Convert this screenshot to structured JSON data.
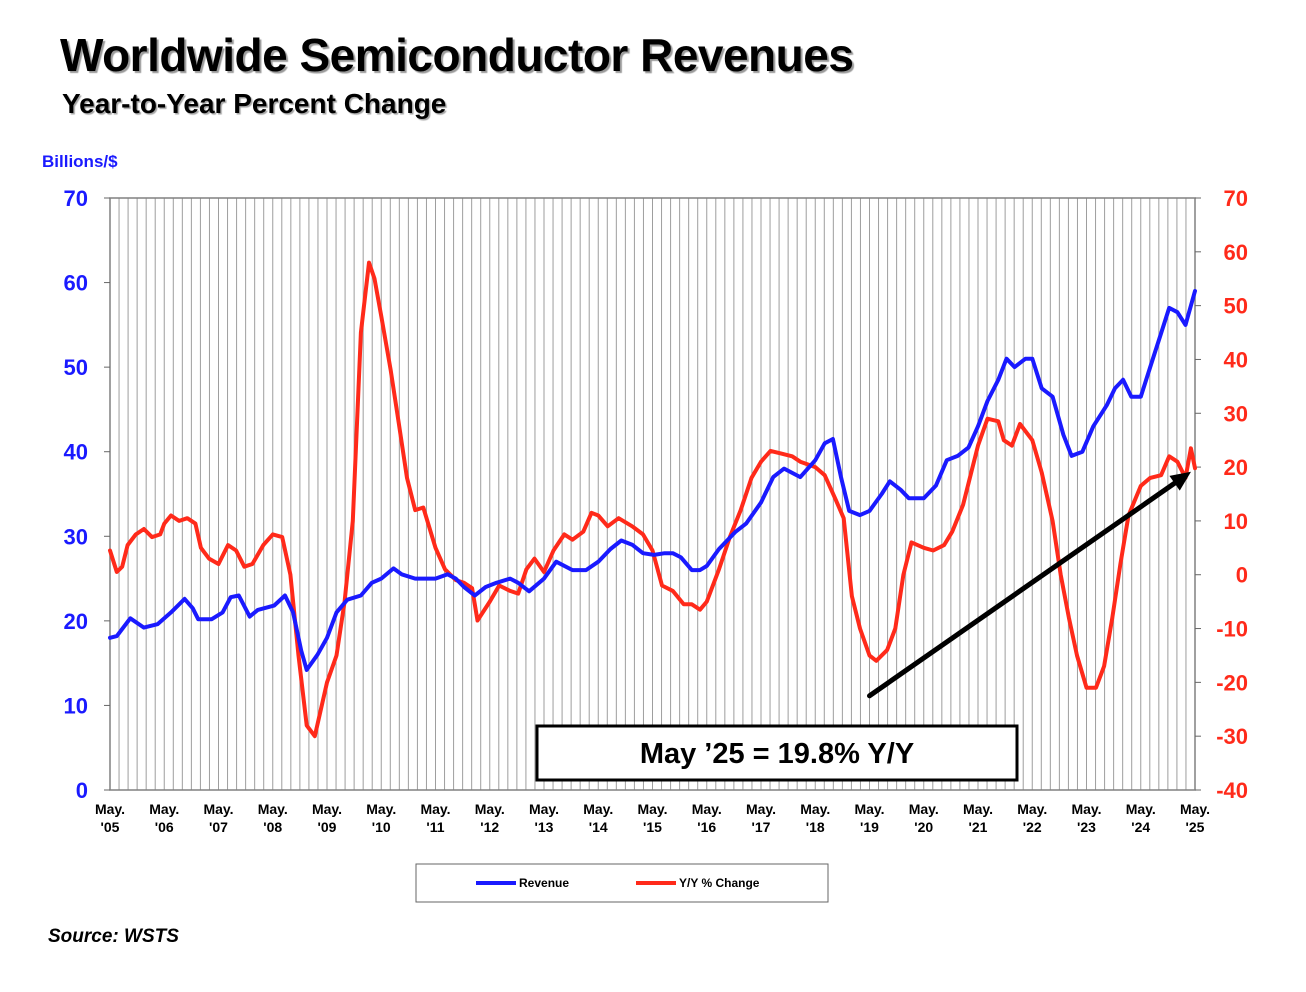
{
  "title": "Worldwide Semiconductor Revenues",
  "subtitle": "Year-to-Year Percent Change",
  "left_axis_unit": "Billions/$",
  "source": "Source: WSTS",
  "annotation": "May ’25 = 19.8% Y/Y",
  "colors": {
    "revenue": "#1a1aff",
    "yoy": "#ff2a1a",
    "grid": "#9e9e9e",
    "arrow": "#000000"
  },
  "chart_data": {
    "type": "line",
    "x_ticks": [
      [
        "May.",
        "'05"
      ],
      [
        "May.",
        "'06"
      ],
      [
        "May.",
        "'07"
      ],
      [
        "May.",
        "'08"
      ],
      [
        "May.",
        "'09"
      ],
      [
        "May.",
        "'10"
      ],
      [
        "May.",
        "'11"
      ],
      [
        "May.",
        "'12"
      ],
      [
        "May.",
        "'13"
      ],
      [
        "May.",
        "'14"
      ],
      [
        "May.",
        "'15"
      ],
      [
        "May.",
        "'16"
      ],
      [
        "May.",
        "'17"
      ],
      [
        "May.",
        "'18"
      ],
      [
        "May.",
        "'19"
      ],
      [
        "May.",
        "'20"
      ],
      [
        "May.",
        "'21"
      ],
      [
        "May.",
        "'22"
      ],
      [
        "May.",
        "'23"
      ],
      [
        "May.",
        "'24"
      ],
      [
        "May.",
        "'25"
      ]
    ],
    "x_range": [
      2005.375,
      2025.375
    ],
    "y_left": {
      "label": "Billions/$",
      "min": 0,
      "max": 70,
      "step": 10,
      "ticks": [
        "0",
        "10",
        "20",
        "30",
        "40",
        "50",
        "60",
        "70"
      ]
    },
    "y_right": {
      "min": -40,
      "max": 70,
      "step": 10,
      "ticks": [
        "-40",
        "-30",
        "-20",
        "-10",
        "0",
        "10",
        "20",
        "30",
        "40",
        "50",
        "60",
        "70"
      ]
    },
    "grid": "vertical-monthly",
    "legend_position": "bottom-center",
    "series": [
      {
        "name": "Revenue",
        "axis": "left",
        "points": [
          [
            2005.375,
            18.0
          ],
          [
            2005.5,
            18.2
          ],
          [
            2005.75,
            20.3
          ],
          [
            2006.0,
            19.2
          ],
          [
            2006.25,
            19.6
          ],
          [
            2006.5,
            21.0
          ],
          [
            2006.75,
            22.6
          ],
          [
            2006.9,
            21.5
          ],
          [
            2007.0,
            20.2
          ],
          [
            2007.25,
            20.2
          ],
          [
            2007.45,
            21.0
          ],
          [
            2007.6,
            22.8
          ],
          [
            2007.75,
            23.0
          ],
          [
            2007.95,
            20.5
          ],
          [
            2008.1,
            21.3
          ],
          [
            2008.4,
            21.8
          ],
          [
            2008.6,
            23.0
          ],
          [
            2008.75,
            21.0
          ],
          [
            2008.9,
            16.5
          ],
          [
            2009.0,
            14.2
          ],
          [
            2009.2,
            16.0
          ],
          [
            2009.375,
            18.0
          ],
          [
            2009.55,
            21.0
          ],
          [
            2009.75,
            22.5
          ],
          [
            2010.0,
            23.0
          ],
          [
            2010.2,
            24.5
          ],
          [
            2010.375,
            25.0
          ],
          [
            2010.6,
            26.2
          ],
          [
            2010.75,
            25.5
          ],
          [
            2011.0,
            25.0
          ],
          [
            2011.2,
            25.0
          ],
          [
            2011.375,
            25.0
          ],
          [
            2011.6,
            25.5
          ],
          [
            2011.75,
            25.0
          ],
          [
            2011.9,
            24.0
          ],
          [
            2012.1,
            23.0
          ],
          [
            2012.3,
            24.0
          ],
          [
            2012.5,
            24.5
          ],
          [
            2012.75,
            25.0
          ],
          [
            2012.9,
            24.5
          ],
          [
            2013.1,
            23.5
          ],
          [
            2013.375,
            25.0
          ],
          [
            2013.6,
            27.0
          ],
          [
            2013.9,
            26.0
          ],
          [
            2014.15,
            26.0
          ],
          [
            2014.375,
            27.0
          ],
          [
            2014.6,
            28.5
          ],
          [
            2014.8,
            29.5
          ],
          [
            2015.0,
            29.0
          ],
          [
            2015.2,
            28.0
          ],
          [
            2015.4,
            27.8
          ],
          [
            2015.6,
            28.0
          ],
          [
            2015.75,
            28.0
          ],
          [
            2015.9,
            27.5
          ],
          [
            2016.1,
            26.0
          ],
          [
            2016.25,
            26.0
          ],
          [
            2016.375,
            26.5
          ],
          [
            2016.6,
            28.5
          ],
          [
            2016.9,
            30.5
          ],
          [
            2017.1,
            31.5
          ],
          [
            2017.375,
            34.0
          ],
          [
            2017.6,
            37.0
          ],
          [
            2017.8,
            38.0
          ],
          [
            2017.95,
            37.5
          ],
          [
            2018.1,
            37.0
          ],
          [
            2018.375,
            39.0
          ],
          [
            2018.55,
            41.0
          ],
          [
            2018.7,
            41.5
          ],
          [
            2018.85,
            37.0
          ],
          [
            2019.0,
            33.0
          ],
          [
            2019.2,
            32.5
          ],
          [
            2019.375,
            33.0
          ],
          [
            2019.6,
            35.0
          ],
          [
            2019.75,
            36.5
          ],
          [
            2019.95,
            35.5
          ],
          [
            2020.1,
            34.5
          ],
          [
            2020.375,
            34.5
          ],
          [
            2020.6,
            36.0
          ],
          [
            2020.8,
            39.0
          ],
          [
            2021.0,
            39.5
          ],
          [
            2021.2,
            40.5
          ],
          [
            2021.375,
            43.0
          ],
          [
            2021.55,
            46.0
          ],
          [
            2021.75,
            48.5
          ],
          [
            2021.9,
            51.0
          ],
          [
            2022.05,
            50.0
          ],
          [
            2022.25,
            51.0
          ],
          [
            2022.375,
            51.0
          ],
          [
            2022.55,
            47.5
          ],
          [
            2022.75,
            46.5
          ],
          [
            2022.95,
            42.0
          ],
          [
            2023.1,
            39.5
          ],
          [
            2023.3,
            40.0
          ],
          [
            2023.5,
            43.0
          ],
          [
            2023.75,
            45.5
          ],
          [
            2023.9,
            47.5
          ],
          [
            2024.05,
            48.5
          ],
          [
            2024.2,
            46.5
          ],
          [
            2024.375,
            46.5
          ],
          [
            2024.55,
            50.0
          ],
          [
            2024.75,
            54.0
          ],
          [
            2024.9,
            57.0
          ],
          [
            2025.05,
            56.5
          ],
          [
            2025.2,
            55.0
          ],
          [
            2025.375,
            59.0
          ]
        ]
      },
      {
        "name": "Y/Y % Change",
        "axis": "right",
        "points": [
          [
            2005.375,
            4.5
          ],
          [
            2005.5,
            0.5
          ],
          [
            2005.6,
            1.5
          ],
          [
            2005.7,
            5.5
          ],
          [
            2005.85,
            7.5
          ],
          [
            2006.0,
            8.5
          ],
          [
            2006.15,
            7.0
          ],
          [
            2006.3,
            7.5
          ],
          [
            2006.375,
            9.5
          ],
          [
            2006.5,
            11.0
          ],
          [
            2006.65,
            10.0
          ],
          [
            2006.8,
            10.5
          ],
          [
            2006.95,
            9.5
          ],
          [
            2007.05,
            5.0
          ],
          [
            2007.2,
            3.0
          ],
          [
            2007.375,
            2.0
          ],
          [
            2007.55,
            5.5
          ],
          [
            2007.7,
            4.5
          ],
          [
            2007.85,
            1.5
          ],
          [
            2008.0,
            2.0
          ],
          [
            2008.2,
            5.5
          ],
          [
            2008.375,
            7.5
          ],
          [
            2008.55,
            7.0
          ],
          [
            2008.7,
            0.0
          ],
          [
            2008.85,
            -15.0
          ],
          [
            2009.0,
            -28.0
          ],
          [
            2009.15,
            -30.0
          ],
          [
            2009.375,
            -20.0
          ],
          [
            2009.55,
            -15.0
          ],
          [
            2009.7,
            -5.0
          ],
          [
            2009.85,
            10.0
          ],
          [
            2010.0,
            45.0
          ],
          [
            2010.15,
            58.0
          ],
          [
            2010.25,
            55.0
          ],
          [
            2010.375,
            48.0
          ],
          [
            2010.55,
            38.0
          ],
          [
            2010.7,
            28.0
          ],
          [
            2010.85,
            18.0
          ],
          [
            2011.0,
            12.0
          ],
          [
            2011.15,
            12.5
          ],
          [
            2011.375,
            5.0
          ],
          [
            2011.55,
            1.0
          ],
          [
            2011.75,
            -1.0
          ],
          [
            2011.9,
            -1.5
          ],
          [
            2012.05,
            -2.5
          ],
          [
            2012.15,
            -8.5
          ],
          [
            2012.375,
            -5.0
          ],
          [
            2012.55,
            -2.0
          ],
          [
            2012.75,
            -3.0
          ],
          [
            2012.9,
            -3.5
          ],
          [
            2013.05,
            1.0
          ],
          [
            2013.2,
            3.0
          ],
          [
            2013.375,
            0.5
          ],
          [
            2013.55,
            4.5
          ],
          [
            2013.75,
            7.5
          ],
          [
            2013.9,
            6.5
          ],
          [
            2014.1,
            8.0
          ],
          [
            2014.25,
            11.5
          ],
          [
            2014.375,
            11.0
          ],
          [
            2014.55,
            9.0
          ],
          [
            2014.75,
            10.5
          ],
          [
            2015.0,
            9.0
          ],
          [
            2015.2,
            7.5
          ],
          [
            2015.375,
            4.5
          ],
          [
            2015.55,
            -2.0
          ],
          [
            2015.75,
            -3.0
          ],
          [
            2015.95,
            -5.5
          ],
          [
            2016.1,
            -5.5
          ],
          [
            2016.25,
            -6.5
          ],
          [
            2016.375,
            -5.0
          ],
          [
            2016.6,
            1.0
          ],
          [
            2016.8,
            7.0
          ],
          [
            2017.0,
            12.0
          ],
          [
            2017.2,
            18.0
          ],
          [
            2017.375,
            21.0
          ],
          [
            2017.55,
            23.0
          ],
          [
            2017.75,
            22.5
          ],
          [
            2017.95,
            22.0
          ],
          [
            2018.1,
            21.0
          ],
          [
            2018.375,
            20.0
          ],
          [
            2018.55,
            18.5
          ],
          [
            2018.75,
            14.0
          ],
          [
            2018.9,
            10.5
          ],
          [
            2019.05,
            -4.0
          ],
          [
            2019.2,
            -10.0
          ],
          [
            2019.375,
            -15.0
          ],
          [
            2019.5,
            -16.0
          ],
          [
            2019.7,
            -14.0
          ],
          [
            2019.85,
            -10.0
          ],
          [
            2020.0,
            0.0
          ],
          [
            2020.15,
            6.0
          ],
          [
            2020.375,
            5.0
          ],
          [
            2020.55,
            4.5
          ],
          [
            2020.75,
            5.5
          ],
          [
            2020.9,
            8.0
          ],
          [
            2021.1,
            13.0
          ],
          [
            2021.375,
            24.0
          ],
          [
            2021.55,
            29.0
          ],
          [
            2021.75,
            28.5
          ],
          [
            2021.85,
            25.0
          ],
          [
            2022.0,
            24.0
          ],
          [
            2022.15,
            28.0
          ],
          [
            2022.375,
            25.0
          ],
          [
            2022.55,
            19.0
          ],
          [
            2022.75,
            10.0
          ],
          [
            2022.9,
            0.0
          ],
          [
            2023.05,
            -8.0
          ],
          [
            2023.2,
            -15.0
          ],
          [
            2023.375,
            -21.0
          ],
          [
            2023.55,
            -21.0
          ],
          [
            2023.7,
            -17.0
          ],
          [
            2023.85,
            -8.0
          ],
          [
            2024.0,
            2.0
          ],
          [
            2024.15,
            11.0
          ],
          [
            2024.375,
            16.5
          ],
          [
            2024.55,
            18.0
          ],
          [
            2024.75,
            18.5
          ],
          [
            2024.9,
            22.0
          ],
          [
            2025.05,
            21.0
          ],
          [
            2025.2,
            18.0
          ],
          [
            2025.3,
            23.5
          ],
          [
            2025.375,
            19.8
          ]
        ]
      }
    ],
    "arrow": {
      "from": [
        2019.375,
        -22.5
      ],
      "to": [
        2025.375,
        19.5
      ]
    }
  }
}
